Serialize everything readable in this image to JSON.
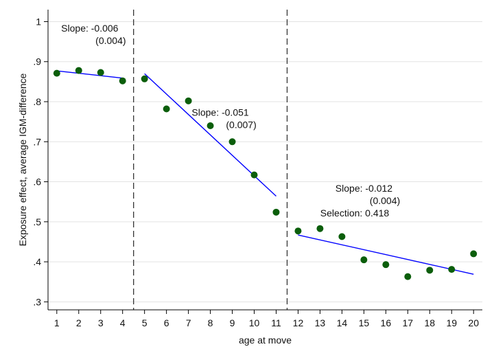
{
  "chart_data": {
    "type": "scatter",
    "xlabel": "age at move",
    "ylabel": "Exposure effect, average IGM-difference",
    "xlim": [
      0.6,
      20.4
    ],
    "ylim": [
      0.28,
      1.03
    ],
    "x_ticks": [
      1,
      2,
      3,
      4,
      5,
      6,
      7,
      8,
      9,
      10,
      11,
      12,
      13,
      14,
      15,
      16,
      17,
      18,
      19,
      20
    ],
    "y_ticks": [
      {
        "value": 0.3,
        "label": ".3"
      },
      {
        "value": 0.4,
        "label": ".4"
      },
      {
        "value": 0.5,
        "label": ".5"
      },
      {
        "value": 0.6,
        "label": ".6"
      },
      {
        "value": 0.7,
        "label": ".7"
      },
      {
        "value": 0.8,
        "label": ".8"
      },
      {
        "value": 0.9,
        "label": ".9"
      },
      {
        "value": 1.0,
        "label": "1"
      }
    ],
    "grid": "horizontal",
    "point_color": "#0b5e0b",
    "line_color": "#0000ff",
    "points": [
      {
        "x": 1,
        "y": 0.871
      },
      {
        "x": 2,
        "y": 0.878
      },
      {
        "x": 3,
        "y": 0.873
      },
      {
        "x": 4,
        "y": 0.852
      },
      {
        "x": 5,
        "y": 0.857
      },
      {
        "x": 6,
        "y": 0.782
      },
      {
        "x": 7,
        "y": 0.802
      },
      {
        "x": 8,
        "y": 0.74
      },
      {
        "x": 9,
        "y": 0.7
      },
      {
        "x": 10,
        "y": 0.617
      },
      {
        "x": 11,
        "y": 0.524
      },
      {
        "x": 12,
        "y": 0.477
      },
      {
        "x": 13,
        "y": 0.483
      },
      {
        "x": 14,
        "y": 0.463
      },
      {
        "x": 15,
        "y": 0.405
      },
      {
        "x": 16,
        "y": 0.393
      },
      {
        "x": 17,
        "y": 0.363
      },
      {
        "x": 18,
        "y": 0.379
      },
      {
        "x": 19,
        "y": 0.381
      },
      {
        "x": 20,
        "y": 0.42
      }
    ],
    "fit_lines": [
      {
        "x": [
          1,
          4
        ],
        "y": [
          0.877,
          0.859
        ]
      },
      {
        "x": [
          5,
          11
        ],
        "y": [
          0.87,
          0.564
        ]
      },
      {
        "x": [
          12,
          20
        ],
        "y": [
          0.467,
          0.369
        ]
      }
    ],
    "vlines": [
      4.5,
      11.5
    ],
    "annotations": [
      {
        "lines": [
          "Slope: -0.006",
          "(0.004)"
        ],
        "x": 1.2,
        "y": 0.975,
        "indent": [
          0,
          1
        ]
      },
      {
        "lines": [
          "Slope: -0.051",
          "(0.007)"
        ],
        "x": 7.15,
        "y": 0.765,
        "indent": [
          0,
          1
        ]
      },
      {
        "lines": [
          "Slope: -0.012",
          "(0.004)",
          "Selection: 0.418"
        ],
        "x": 13.7,
        "y": 0.575,
        "indent": [
          0,
          1,
          2
        ]
      }
    ]
  }
}
